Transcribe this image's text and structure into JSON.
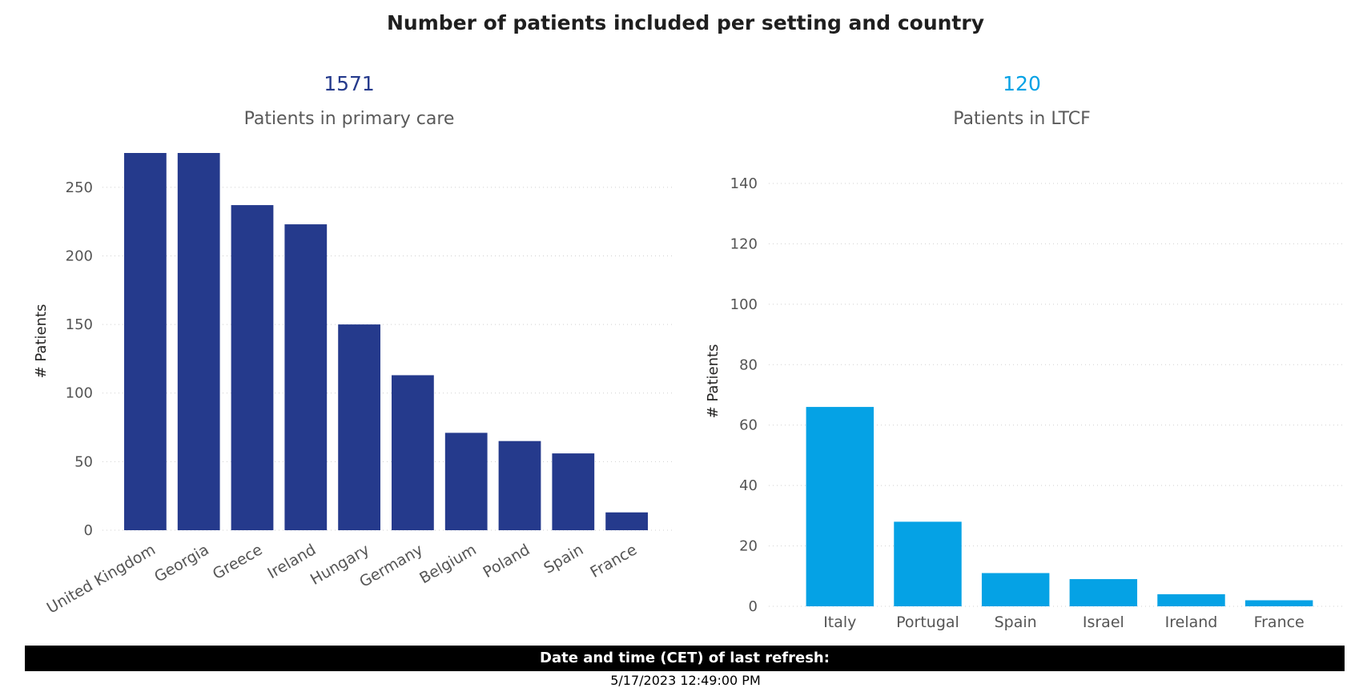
{
  "title": "Number of patients included per setting and country",
  "colors": {
    "primary_care": "#253a8c",
    "ltcf": "#05a2e5"
  },
  "kpis": {
    "primary": {
      "value": "1571",
      "label": "Patients in primary care"
    },
    "ltcf": {
      "value": "120",
      "label": "Patients in LTCF"
    }
  },
  "footer": {
    "label": "Date and time (CET) of last refresh:",
    "timestamp": "5/17/2023 12:49:00 PM"
  },
  "chart_data": [
    {
      "type": "bar",
      "title": "",
      "xlabel": "",
      "ylabel": "# Patients",
      "ylim": [
        0,
        275
      ],
      "yticks": [
        0,
        50,
        100,
        150,
        200,
        250
      ],
      "categories": [
        "United Kingdom",
        "Georgia",
        "Greece",
        "Ireland",
        "Hungary",
        "Germany",
        "Belgium",
        "Poland",
        "Spain",
        "France"
      ],
      "values": [
        275,
        275,
        237,
        223,
        150,
        113,
        71,
        65,
        56,
        13
      ],
      "grid": true,
      "color": "#253a8c"
    },
    {
      "type": "bar",
      "title": "",
      "xlabel": "",
      "ylabel": "# Patients",
      "ylim": [
        0,
        140
      ],
      "yticks": [
        0,
        20,
        40,
        60,
        80,
        100,
        120,
        140
      ],
      "categories": [
        "Italy",
        "Portugal",
        "Spain",
        "Israel",
        "Ireland",
        "France"
      ],
      "values": [
        66,
        28,
        11,
        9,
        4,
        2
      ],
      "grid": true,
      "color": "#05a2e5"
    }
  ]
}
